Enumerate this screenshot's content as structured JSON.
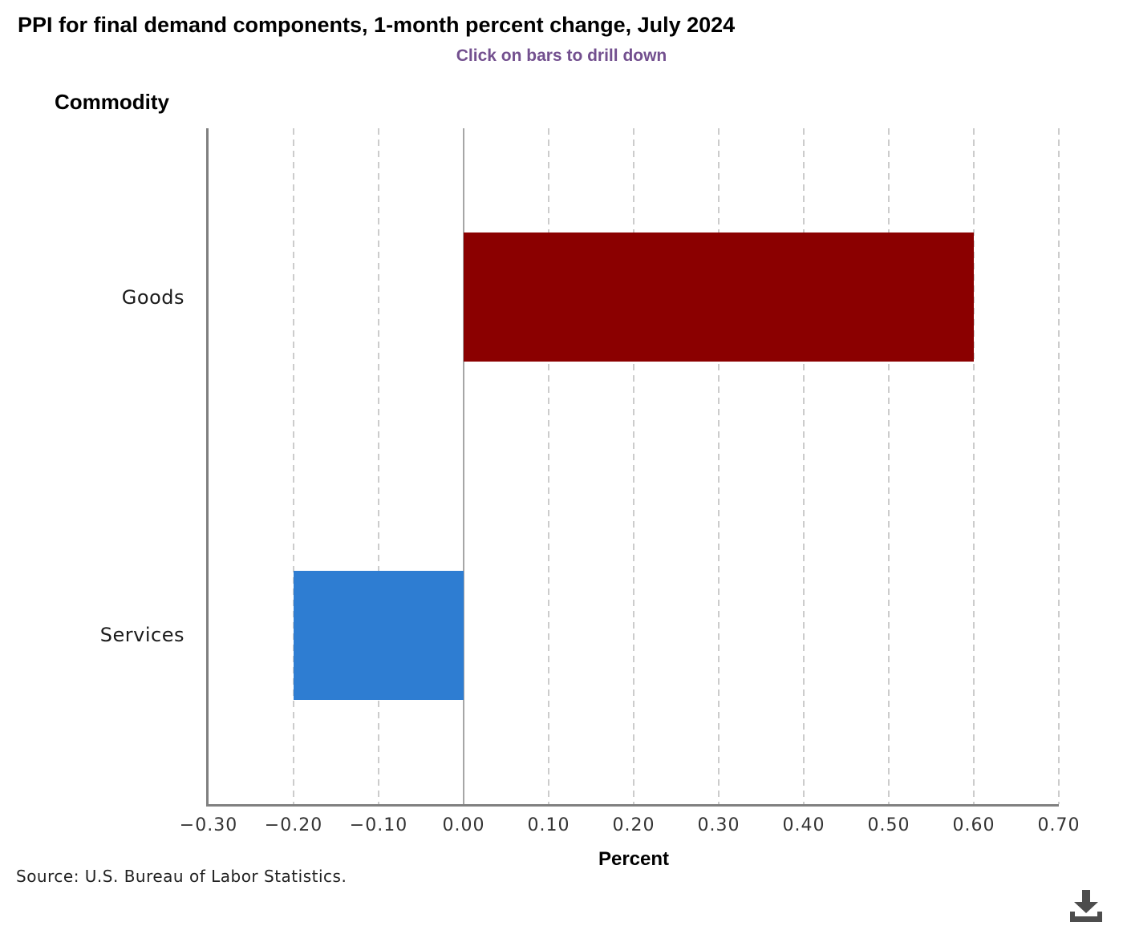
{
  "page": {
    "title": "PPI for final demand components, 1-month percent change, July 2024",
    "subtitle": "Click on bars to drill down",
    "source_note": "Source: U.S. Bureau of Labor Statistics."
  },
  "chart_data": {
    "type": "bar",
    "orientation": "horizontal",
    "title": "PPI for final demand components, 1-month percent change, July 2024",
    "subtitle": "Click on bars to drill down",
    "category_axis_label": "Commodity",
    "value_axis_label": "Percent",
    "categories": [
      "Goods",
      "Services"
    ],
    "values": [
      0.6,
      -0.2
    ],
    "bar_colors": [
      "#8B0000",
      "#2E7DD2"
    ],
    "xlim": [
      -0.3,
      0.7
    ],
    "xticks": [
      -0.3,
      -0.2,
      -0.1,
      0.0,
      0.1,
      0.2,
      0.3,
      0.4,
      0.5,
      0.6,
      0.7
    ],
    "xtick_labels": [
      "−0.30",
      "−0.20",
      "−0.10",
      "0.00",
      "0.10",
      "0.20",
      "0.30",
      "0.40",
      "0.50",
      "0.60",
      "0.70"
    ],
    "grid": "vertical dashed gridlines at each tick, solid line at zero",
    "legend": "none"
  },
  "colors": {
    "title_text": "#000000",
    "subtitle_text": "#73508F",
    "axis_line": "#808080",
    "gridline": "#CCCCCC",
    "zero_line": "#A6A6A6",
    "tick_text": "#333333",
    "download_icon": "#4D4D4D"
  }
}
